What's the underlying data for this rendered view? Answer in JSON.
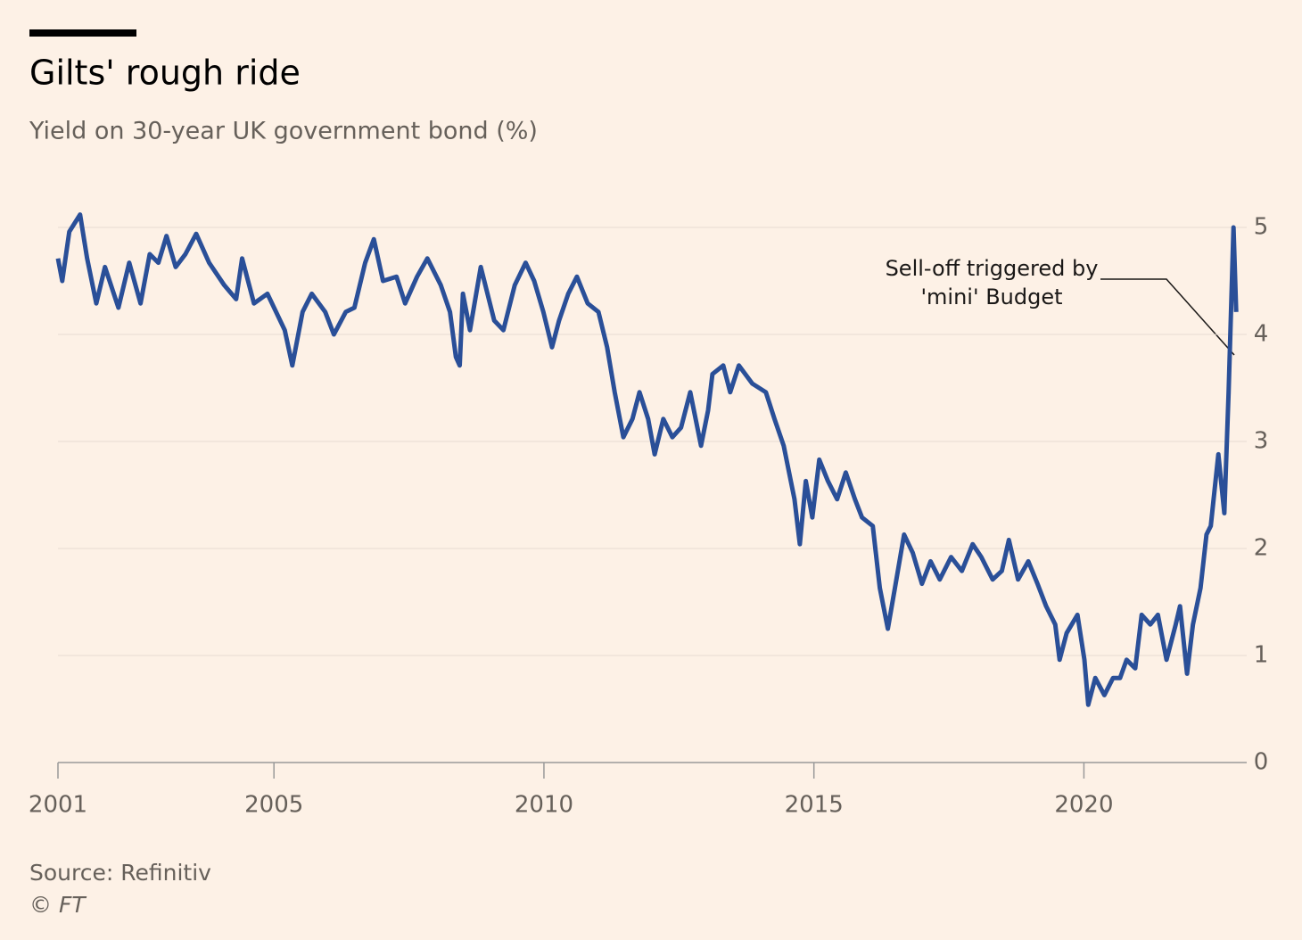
{
  "chart_data": {
    "type": "line",
    "title": "Gilts' rough ride",
    "subtitle": "Yield on 30-year UK government bond (%)",
    "annotation": [
      "Sell-off triggered by",
      "'mini' Budget"
    ],
    "source": "Source: Refinitiv",
    "credit": "© FT",
    "xlim": [
      2001,
      2022.85
    ],
    "xticks": [
      2001,
      2005,
      2010,
      2015,
      2020
    ],
    "ylim": [
      0,
      5
    ],
    "yticks": [
      0,
      1,
      2,
      3,
      4,
      5
    ],
    "grid": true,
    "y_axis_side": "right",
    "x": [
      2001.0,
      2001.08,
      2001.21,
      2001.41,
      2001.54,
      2001.71,
      2001.87,
      2002.12,
      2002.32,
      2002.53,
      2002.7,
      2002.86,
      2003.01,
      2003.18,
      2003.36,
      2003.56,
      2003.8,
      2004.08,
      2004.3,
      2004.41,
      2004.63,
      2004.88,
      2005.04,
      2005.2,
      2005.34,
      2005.53,
      2005.7,
      2005.95,
      2006.11,
      2006.33,
      2006.49,
      2006.69,
      2006.85,
      2007.02,
      2007.27,
      2007.43,
      2007.65,
      2007.84,
      2008.09,
      2008.26,
      2008.37,
      2008.44,
      2008.5,
      2008.63,
      2008.83,
      2009.08,
      2009.25,
      2009.46,
      2009.66,
      2009.82,
      2009.99,
      2010.15,
      2010.28,
      2010.45,
      2010.61,
      2010.81,
      2011.01,
      2011.17,
      2011.31,
      2011.47,
      2011.64,
      2011.77,
      2011.93,
      2012.05,
      2012.21,
      2012.38,
      2012.54,
      2012.71,
      2012.91,
      2013.04,
      2013.12,
      2013.32,
      2013.45,
      2013.61,
      2013.86,
      2014.11,
      2014.27,
      2014.44,
      2014.64,
      2014.74,
      2014.85,
      2014.97,
      2015.1,
      2015.26,
      2015.43,
      2015.59,
      2015.76,
      2015.89,
      2016.09,
      2016.22,
      2016.37,
      2016.5,
      2016.67,
      2016.83,
      2017.0,
      2017.16,
      2017.33,
      2017.54,
      2017.74,
      2017.94,
      2018.1,
      2018.31,
      2018.48,
      2018.61,
      2018.78,
      2018.97,
      2019.14,
      2019.3,
      2019.47,
      2019.55,
      2019.68,
      2019.88,
      2020.01,
      2020.08,
      2020.21,
      2020.38,
      2020.54,
      2020.67,
      2020.79,
      2020.95,
      2021.07,
      2021.23,
      2021.37,
      2021.53,
      2021.7,
      2021.78,
      2021.91,
      2022.02,
      2022.16,
      2022.27,
      2022.35,
      2022.49,
      2022.6,
      2022.68,
      2022.77,
      2022.82
    ],
    "series": [
      {
        "name": "30-year gilt yield",
        "color": "#2a4f98",
        "values": [
          4.71,
          4.5,
          4.96,
          5.12,
          4.71,
          4.29,
          4.63,
          4.25,
          4.67,
          4.29,
          4.75,
          4.67,
          4.92,
          4.63,
          4.75,
          4.94,
          4.67,
          4.46,
          4.33,
          4.71,
          4.29,
          4.38,
          4.21,
          4.04,
          3.71,
          4.21,
          4.38,
          4.21,
          4.0,
          4.21,
          4.25,
          4.67,
          4.89,
          4.5,
          4.54,
          4.29,
          4.54,
          4.71,
          4.46,
          4.21,
          3.79,
          3.71,
          4.38,
          4.04,
          4.63,
          4.13,
          4.04,
          4.46,
          4.67,
          4.5,
          4.21,
          3.88,
          4.13,
          4.38,
          4.54,
          4.29,
          4.21,
          3.88,
          3.46,
          3.04,
          3.21,
          3.46,
          3.21,
          2.88,
          3.21,
          3.04,
          3.13,
          3.46,
          2.96,
          3.29,
          3.63,
          3.71,
          3.46,
          3.71,
          3.54,
          3.46,
          3.21,
          2.96,
          2.46,
          2.04,
          2.63,
          2.29,
          2.83,
          2.63,
          2.46,
          2.71,
          2.46,
          2.29,
          2.21,
          1.63,
          1.25,
          1.63,
          2.13,
          1.96,
          1.67,
          1.88,
          1.71,
          1.92,
          1.79,
          2.04,
          1.92,
          1.71,
          1.79,
          2.08,
          1.71,
          1.88,
          1.67,
          1.46,
          1.29,
          0.96,
          1.21,
          1.38,
          0.96,
          0.54,
          0.79,
          0.63,
          0.79,
          0.79,
          0.96,
          0.88,
          1.38,
          1.29,
          1.38,
          0.96,
          1.29,
          1.46,
          0.83,
          1.29,
          1.63,
          2.13,
          2.21,
          2.88,
          2.33,
          3.46,
          5.0,
          4.21
        ]
      }
    ]
  }
}
